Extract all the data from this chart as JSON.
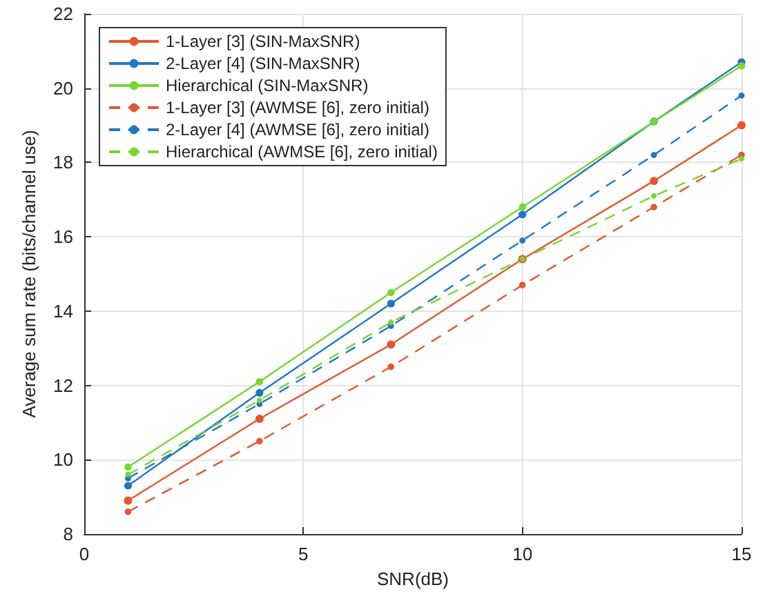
{
  "chart_data": {
    "type": "line",
    "xlabel": "SNR(dB)",
    "ylabel": "Average sum rate (bits/channel use)",
    "x": [
      1,
      4,
      7,
      10,
      13,
      15
    ],
    "xlim": [
      0,
      15
    ],
    "xticks": [
      0,
      5,
      10,
      15
    ],
    "ylim": [
      8,
      22
    ],
    "yticks": [
      8,
      10,
      12,
      14,
      16,
      18,
      20,
      22
    ],
    "grid": true,
    "legend": "top left",
    "marker": "circle",
    "series": [
      {
        "name": "1-Layer [3] (SIN-MaxSNR)",
        "color": "#e4572e",
        "line_style": "solid",
        "values": [
          8.9,
          11.1,
          13.1,
          15.4,
          17.5,
          19.0
        ]
      },
      {
        "name": "2-Layer [4] (SIN-MaxSNR)",
        "color": "#1f77c4",
        "line_style": "solid",
        "values": [
          9.3,
          11.8,
          14.2,
          16.6,
          19.1,
          20.7
        ]
      },
      {
        "name": "Hierarchical (SIN-MaxSNR)",
        "color": "#77d62f",
        "line_style": "solid",
        "values": [
          9.8,
          12.1,
          14.5,
          16.8,
          19.1,
          20.6
        ]
      },
      {
        "name": "1-Layer [3] (AWMSE [6], zero initial)",
        "color": "#e4572e",
        "line_style": "dashed",
        "values": [
          8.6,
          10.5,
          12.5,
          14.7,
          16.8,
          18.2
        ]
      },
      {
        "name": "2-Layer [4] (AWMSE [6], zero initial)",
        "color": "#1f77c4",
        "line_style": "dashed",
        "values": [
          9.5,
          11.5,
          13.6,
          15.9,
          18.2,
          19.8
        ]
      },
      {
        "name": "Hierarchical (AWMSE [6], zero initial)",
        "color": "#77d62f",
        "line_style": "dashed",
        "values": [
          9.6,
          11.6,
          13.7,
          15.4,
          17.1,
          18.1
        ]
      }
    ]
  }
}
